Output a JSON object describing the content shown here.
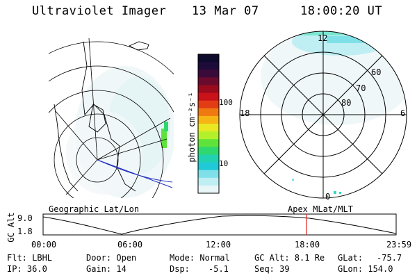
{
  "header": {
    "instrument": "Ultraviolet Imager",
    "date": "13 Mar 07",
    "time": "18:00:20 UT"
  },
  "colorbar": {
    "unit_label": "photon cm⁻²s⁻¹",
    "ticks": [
      "100",
      "10"
    ],
    "colors": [
      "#0d0b2b",
      "#1d0b3a",
      "#3a0b3a",
      "#6a0b2e",
      "#9b0b1e",
      "#c9121a",
      "#e23c14",
      "#f07a12",
      "#f6b514",
      "#e9e822",
      "#b3f02b",
      "#5fe33b",
      "#2fd86f",
      "#22d1b0",
      "#1fc9d6",
      "#7fe0e8",
      "#bfeef3",
      "#e8f6f8"
    ]
  },
  "left_map": {
    "caption": "Geographic Lat/Lon"
  },
  "right_map": {
    "caption": "Apex MLat/MLT",
    "mlt_labels": {
      "top": "12",
      "left": "18",
      "right": "6",
      "bottom": "0"
    },
    "lat_labels": [
      "60",
      "70",
      "80"
    ]
  },
  "altitude_strip": {
    "ylabel": "GC Alt",
    "yticks": [
      "9.0",
      "1.8"
    ],
    "xticks": [
      "00:00",
      "06:00",
      "12:00",
      "18:00",
      "23:59"
    ],
    "marker_time": "18:00",
    "marker_color": "#e0201a"
  },
  "footer": {
    "filter": "Flt: LBHL",
    "ip": "IP: 36.0",
    "door": "Door: Open",
    "gain": "Gain: 14",
    "mode": "Mode: Normal",
    "dsp": "Dsp:",
    "dsp_value": "-5.1",
    "gc_alt": "GC Alt: 8.1 Re",
    "seq": "Seq: 39",
    "glat": "GLat:",
    "glat_value": "-75.7",
    "glon": "GLon: 154.0"
  }
}
